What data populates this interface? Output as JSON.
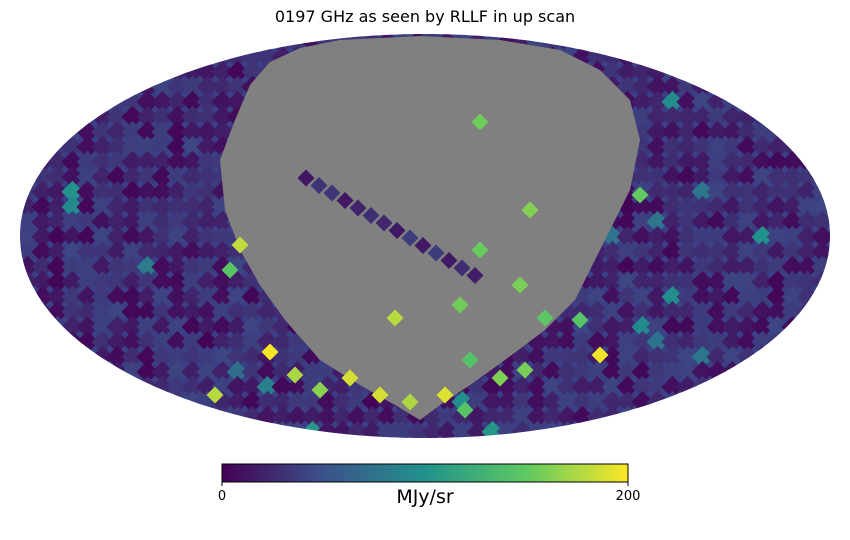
{
  "chart_data": {
    "type": "heatmap",
    "projection": "mollweide",
    "title": "0197 GHz as seen by RLLF in up scan",
    "colormap": "viridis",
    "colormap_stops": [
      "#440154",
      "#3b528b",
      "#21918c",
      "#5ec962",
      "#fde725"
    ],
    "masked_color": "#808080",
    "colorbar": {
      "orientation": "horizontal",
      "vmin": 0,
      "vmax": 200,
      "tick_labels": [
        "0",
        "200"
      ],
      "label": "MJy/sr"
    },
    "background_level_approx": 25,
    "grid": false,
    "masked_region": "large region covering most of the northern sky, centred on the map",
    "bright_features": "high values (near 200) along the lower edge of the masked region"
  }
}
